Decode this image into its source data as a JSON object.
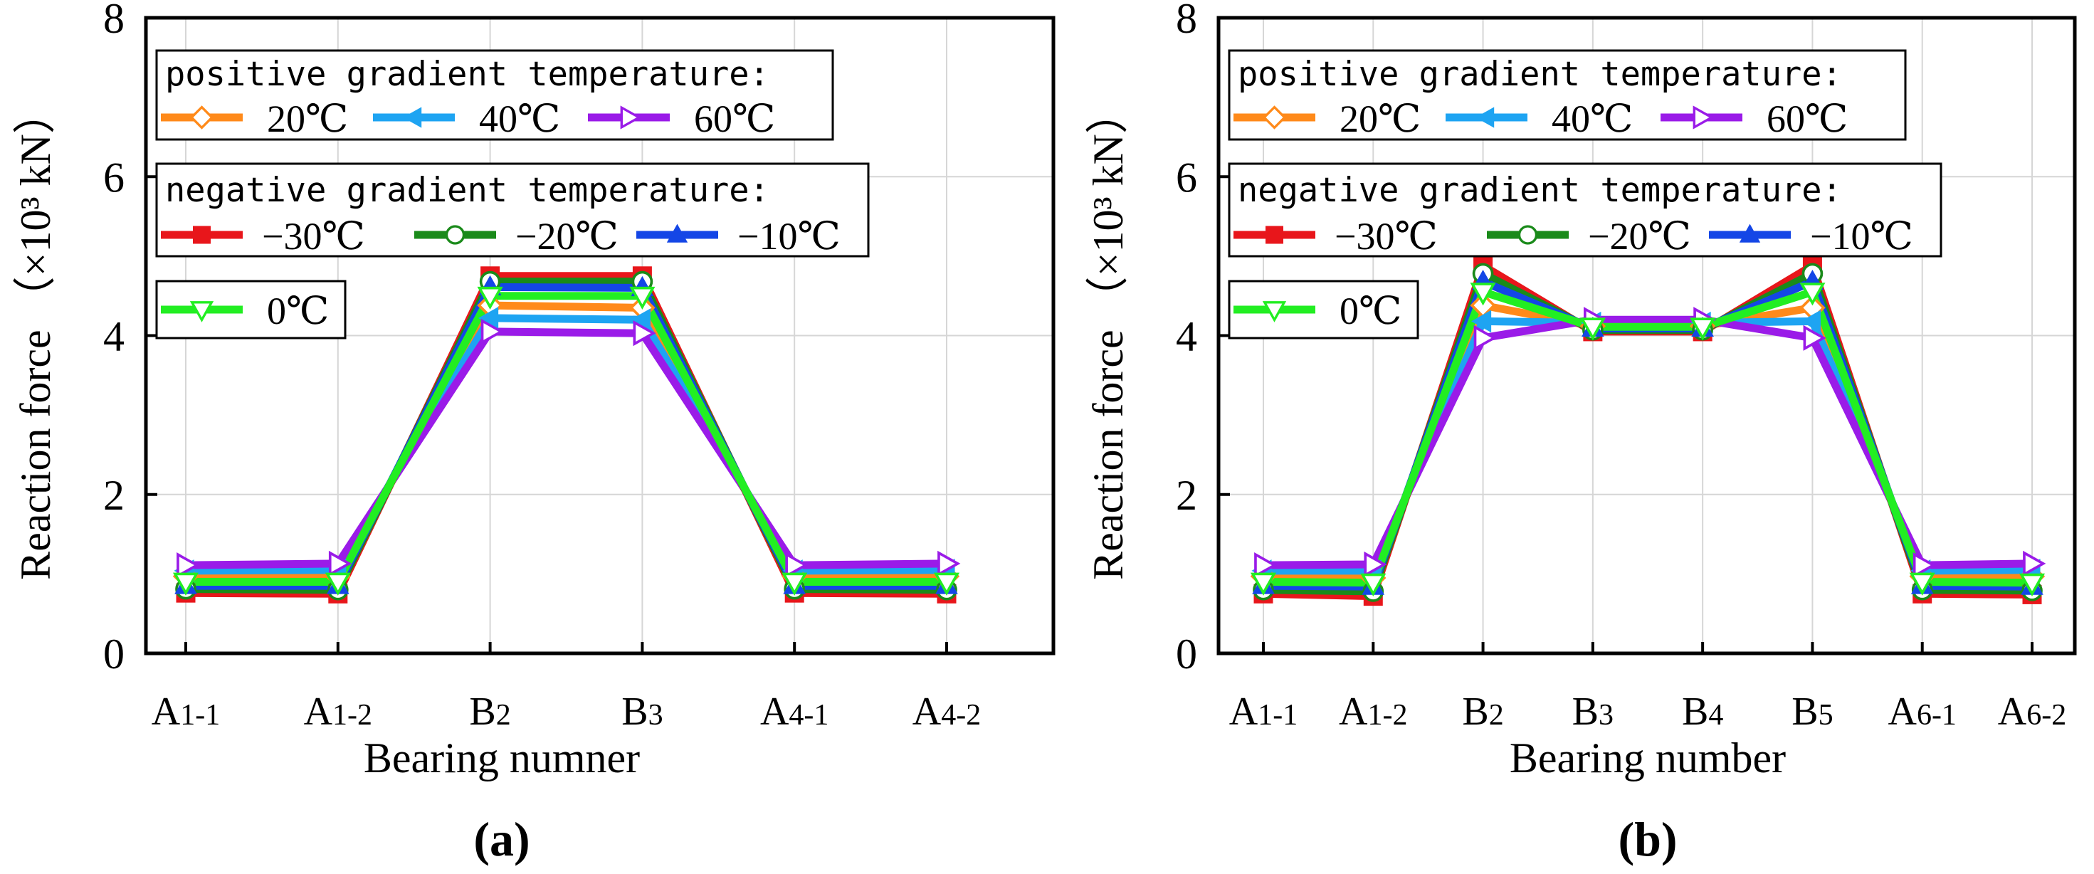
{
  "colors": {
    "pos20": "#ff8a1a",
    "pos40": "#1ea4f2",
    "pos60": "#9a1be8",
    "neg30": "#e8161b",
    "neg20": "#1a8a1a",
    "neg10": "#1446e6",
    "zero": "#22ee22"
  },
  "chart_data": [
    {
      "type": "line",
      "panel_label": "(a)",
      "title": "",
      "xlabel": "Bearing numner",
      "ylabel": "Reaction force （×10³ kN）",
      "ylim": [
        0,
        8
      ],
      "yticks": [
        "0",
        "2",
        "4",
        "6",
        "8"
      ],
      "grid": true,
      "categories": [
        {
          "main": "A",
          "sub": "1-1"
        },
        {
          "main": "A",
          "sub": "1-2"
        },
        {
          "main": "B",
          "sub": "2"
        },
        {
          "main": "B",
          "sub": "3"
        },
        {
          "main": "A",
          "sub": "4-1"
        },
        {
          "main": "A",
          "sub": "4-2"
        }
      ],
      "legend": {
        "positive_title": "positive gradient temperature:",
        "negative_title": "negative gradient temperature:"
      },
      "series": [
        {
          "key": "pos20",
          "name": "20℃",
          "group": "positive",
          "marker": "diamond-open",
          "values": [
            0.97,
            0.97,
            4.38,
            4.35,
            0.97,
            0.97
          ]
        },
        {
          "key": "pos40",
          "name": "40℃",
          "group": "positive",
          "marker": "triangle-left",
          "values": [
            1.04,
            1.05,
            4.22,
            4.2,
            1.04,
            1.05
          ]
        },
        {
          "key": "pos60",
          "name": "60℃",
          "group": "positive",
          "marker": "triangle-right-open",
          "values": [
            1.11,
            1.13,
            4.05,
            4.03,
            1.11,
            1.13
          ]
        },
        {
          "key": "neg30",
          "name": "−30℃",
          "group": "negative",
          "marker": "square",
          "values": [
            0.76,
            0.75,
            4.75,
            4.75,
            0.76,
            0.75
          ]
        },
        {
          "key": "neg20",
          "name": "−20℃",
          "group": "negative",
          "marker": "circle-open",
          "values": [
            0.81,
            0.8,
            4.68,
            4.68,
            0.81,
            0.8
          ]
        },
        {
          "key": "neg10",
          "name": "−10℃",
          "group": "negative",
          "marker": "triangle-up",
          "values": [
            0.85,
            0.85,
            4.61,
            4.6,
            0.85,
            0.85
          ]
        },
        {
          "key": "zero",
          "name": "0℃",
          "group": "zero",
          "marker": "triangle-down-open",
          "values": [
            0.9,
            0.9,
            4.5,
            4.5,
            0.9,
            0.9
          ]
        }
      ]
    },
    {
      "type": "line",
      "panel_label": "(b)",
      "title": "",
      "xlabel": "Bearing number",
      "ylabel": "Reaction force （×10³ kN）",
      "ylim": [
        0,
        8
      ],
      "yticks": [
        "0",
        "2",
        "4",
        "6",
        "8"
      ],
      "grid": true,
      "categories": [
        {
          "main": "A",
          "sub": "1-1"
        },
        {
          "main": "A",
          "sub": "1-2"
        },
        {
          "main": "B",
          "sub": "2"
        },
        {
          "main": "B",
          "sub": "3"
        },
        {
          "main": "B",
          "sub": "4"
        },
        {
          "main": "B",
          "sub": "5"
        },
        {
          "main": "A",
          "sub": "6-1"
        },
        {
          "main": "A",
          "sub": "6-2"
        }
      ],
      "legend": {
        "positive_title": "positive gradient temperature:",
        "negative_title": "negative gradient temperature:"
      },
      "series": [
        {
          "key": "pos20",
          "name": "20℃",
          "group": "positive",
          "marker": "diamond-open",
          "values": [
            0.97,
            0.95,
            4.38,
            4.12,
            4.12,
            4.35,
            0.97,
            0.97
          ]
        },
        {
          "key": "pos40",
          "name": "40℃",
          "group": "positive",
          "marker": "triangle-left",
          "values": [
            1.04,
            1.04,
            4.18,
            4.16,
            4.16,
            4.18,
            1.04,
            1.05
          ]
        },
        {
          "key": "pos60",
          "name": "60℃",
          "group": "positive",
          "marker": "triangle-right-open",
          "values": [
            1.11,
            1.12,
            3.97,
            4.2,
            4.2,
            3.97,
            1.11,
            1.13
          ]
        },
        {
          "key": "neg30",
          "name": "−30℃",
          "group": "negative",
          "marker": "square",
          "values": [
            0.75,
            0.72,
            4.88,
            4.05,
            4.05,
            4.88,
            0.75,
            0.74
          ]
        },
        {
          "key": "neg20",
          "name": "−20℃",
          "group": "negative",
          "marker": "circle-open",
          "values": [
            0.8,
            0.78,
            4.78,
            4.07,
            4.07,
            4.78,
            0.8,
            0.79
          ]
        },
        {
          "key": "neg10",
          "name": "−10℃",
          "group": "negative",
          "marker": "triangle-up",
          "values": [
            0.85,
            0.84,
            4.68,
            4.09,
            4.09,
            4.68,
            0.85,
            0.84
          ]
        },
        {
          "key": "zero",
          "name": "0℃",
          "group": "zero",
          "marker": "triangle-down-open",
          "values": [
            0.9,
            0.89,
            4.55,
            4.11,
            4.11,
            4.55,
            0.9,
            0.89
          ]
        }
      ]
    }
  ]
}
